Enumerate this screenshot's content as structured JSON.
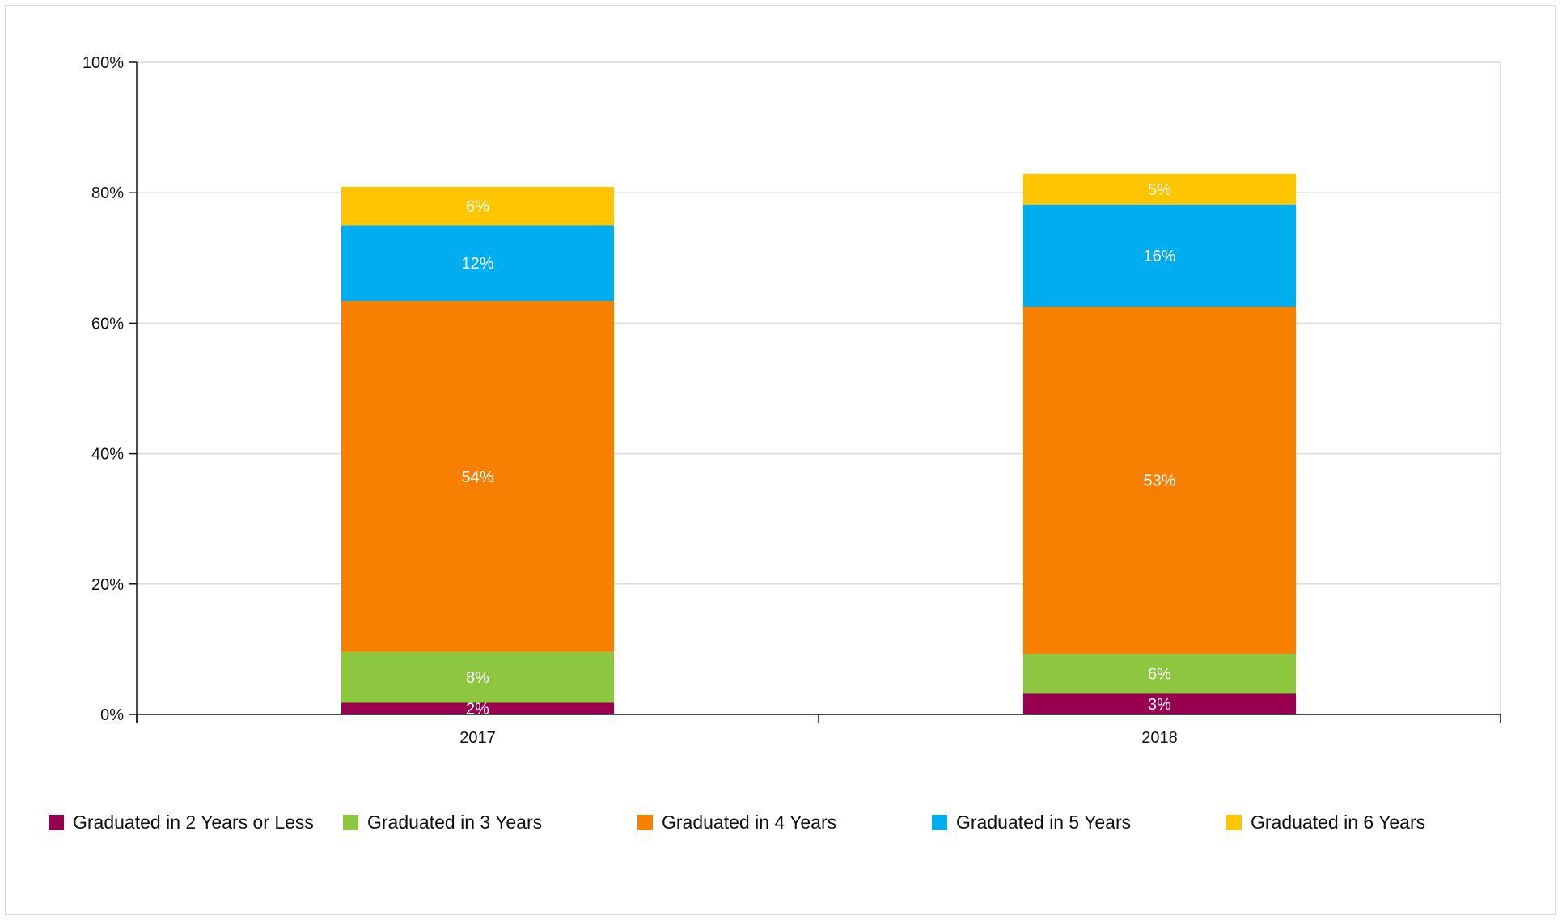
{
  "chart_data": {
    "type": "bar",
    "stacked": true,
    "categories": [
      "2017",
      "2018"
    ],
    "series": [
      {
        "name": "Graduated in 2 Years or Less",
        "color": "#990050",
        "values": [
          1.8,
          3.2
        ],
        "labels": [
          "2%",
          "3%"
        ]
      },
      {
        "name": "Graduated in 3 Years",
        "color": "#8dc63f",
        "values": [
          7.8,
          6.1
        ],
        "labels": [
          "8%",
          "6%"
        ]
      },
      {
        "name": "Graduated in 4 Years",
        "color": "#f78000",
        "values": [
          53.8,
          53.2
        ],
        "labels": [
          "54%",
          "53%"
        ]
      },
      {
        "name": "Graduated in 5 Years",
        "color": "#00adef",
        "values": [
          11.6,
          15.7
        ],
        "labels": [
          "12%",
          "16%"
        ]
      },
      {
        "name": "Graduated in 6 Years",
        "color": "#ffc600",
        "values": [
          5.9,
          4.7
        ],
        "labels": [
          "6%",
          "5%"
        ]
      }
    ],
    "yticks": [
      "0%",
      "20%",
      "40%",
      "60%",
      "80%",
      "100%"
    ],
    "ylim": [
      0,
      100
    ],
    "grid": true,
    "legend_position": "bottom",
    "title": "",
    "xlabel": "",
    "ylabel": ""
  }
}
